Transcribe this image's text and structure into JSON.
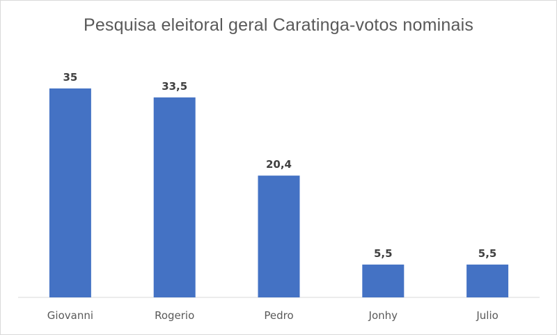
{
  "chart_data": {
    "type": "bar",
    "title": "Pesquisa  eleitoral geral Caratinga-votos nominais",
    "categories": [
      "Giovanni",
      "Rogerio",
      "Pedro",
      "Jonhy",
      "Julio"
    ],
    "values": [
      35,
      33.5,
      20.4,
      5.5,
      5.5
    ],
    "value_labels": [
      "35",
      "33,5",
      "20,4",
      "5,5",
      "5,5"
    ],
    "xlabel": "",
    "ylabel": "",
    "ylim": [
      0,
      35
    ],
    "grid": false,
    "legend": "none",
    "bar_color": "#4472C4"
  }
}
